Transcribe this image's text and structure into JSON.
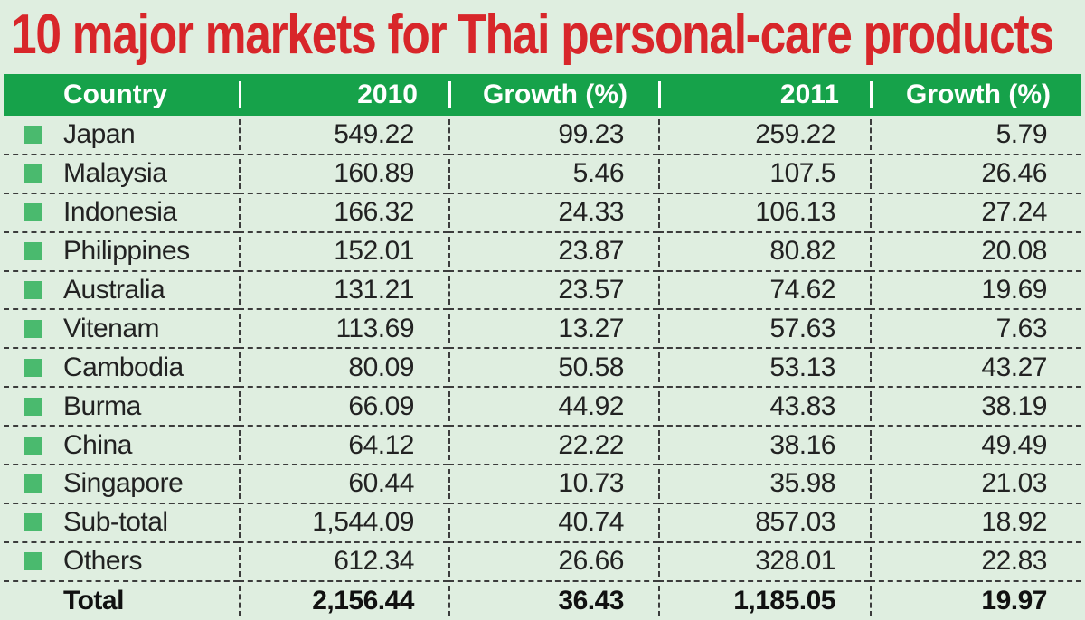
{
  "title": "10 major markets for Thai personal-care products",
  "colors": {
    "title": "#d8262a",
    "header_bg": "#16a24a",
    "background": "#dfeee0",
    "bullet": "#4aba6e"
  },
  "chart_data": {
    "type": "table",
    "columns": [
      "Country",
      "2010",
      "Growth (%)",
      "2011",
      "Growth (%)"
    ],
    "rows": [
      [
        "Japan",
        "549.22",
        "99.23",
        "259.22",
        "5.79"
      ],
      [
        "Malaysia",
        "160.89",
        "5.46",
        "107.5",
        "26.46"
      ],
      [
        "Indonesia",
        "166.32",
        "24.33",
        "106.13",
        "27.24"
      ],
      [
        "Philippines",
        "152.01",
        "23.87",
        "80.82",
        "20.08"
      ],
      [
        "Australia",
        "131.21",
        "23.57",
        "74.62",
        "19.69"
      ],
      [
        "Vitenam",
        "113.69",
        "13.27",
        "57.63",
        "7.63"
      ],
      [
        "Cambodia",
        "80.09",
        "50.58",
        "53.13",
        "43.27"
      ],
      [
        "Burma",
        "66.09",
        "44.92",
        "43.83",
        "38.19"
      ],
      [
        "China",
        "64.12",
        "22.22",
        "38.16",
        "49.49"
      ],
      [
        "Singapore",
        "60.44",
        "10.73",
        "35.98",
        "21.03"
      ],
      [
        "Sub-total",
        "1,544.09",
        "40.74",
        "857.03",
        "18.92"
      ],
      [
        "Others",
        "612.34",
        "26.66",
        "328.01",
        "22.83"
      ]
    ],
    "total": [
      "Total",
      "2,156.44",
      "36.43",
      "1,185.05",
      "19.97"
    ]
  }
}
